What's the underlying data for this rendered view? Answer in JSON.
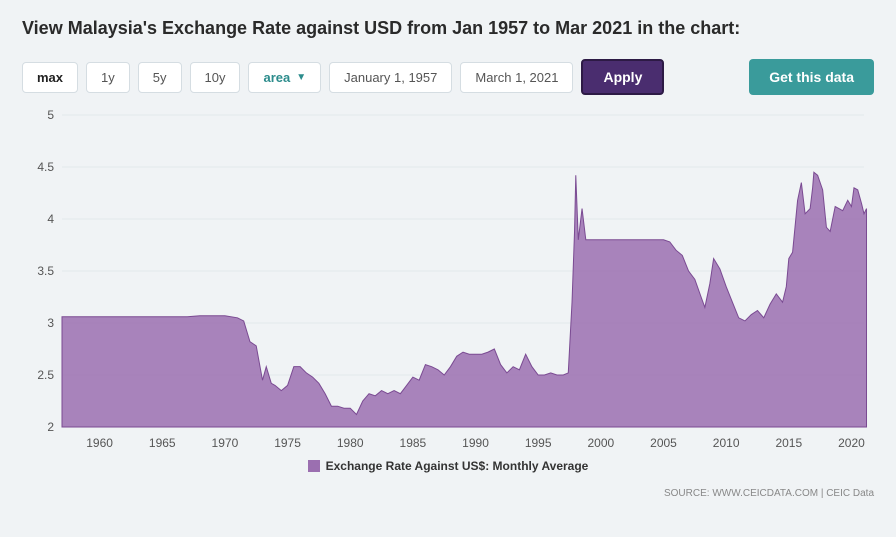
{
  "title": "View Malaysia's Exchange Rate against USD from Jan 1957 to Mar 2021 in the chart:",
  "controls": {
    "range_buttons": [
      "max",
      "1y",
      "5y",
      "10y"
    ],
    "active_range": "max",
    "chart_type": "area",
    "date_from": "January 1, 1957",
    "date_to": "March 1, 2021",
    "apply_label": "Apply",
    "get_data_label": "Get this data"
  },
  "chart": {
    "type": "area",
    "series_name": "Exchange Rate Against US$: Monthly Average",
    "fill_color": "#9b6fb0",
    "stroke_color": "#7a4a92",
    "background_color": "#f0f3f5",
    "grid_color": "#e2e8ec",
    "axis_text_color": "#555555",
    "x_range": [
      1957,
      2021
    ],
    "x_ticks": [
      1960,
      1965,
      1970,
      1975,
      1980,
      1985,
      1990,
      1995,
      2000,
      2005,
      2010,
      2015,
      2020
    ],
    "y_range": [
      2,
      5
    ],
    "y_ticks": [
      2,
      2.5,
      3,
      3.5,
      4,
      4.5,
      5
    ],
    "label_fontsize": 12,
    "legend_fontsize": 12,
    "data": [
      [
        1957,
        3.06
      ],
      [
        1958,
        3.06
      ],
      [
        1959,
        3.06
      ],
      [
        1960,
        3.06
      ],
      [
        1961,
        3.06
      ],
      [
        1962,
        3.06
      ],
      [
        1963,
        3.06
      ],
      [
        1964,
        3.06
      ],
      [
        1965,
        3.06
      ],
      [
        1966,
        3.06
      ],
      [
        1967,
        3.06
      ],
      [
        1968,
        3.07
      ],
      [
        1969,
        3.07
      ],
      [
        1970,
        3.07
      ],
      [
        1971,
        3.05
      ],
      [
        1971.5,
        3.02
      ],
      [
        1972,
        2.82
      ],
      [
        1972.5,
        2.78
      ],
      [
        1973,
        2.45
      ],
      [
        1973.3,
        2.58
      ],
      [
        1973.7,
        2.42
      ],
      [
        1974,
        2.4
      ],
      [
        1974.5,
        2.35
      ],
      [
        1975,
        2.4
      ],
      [
        1975.5,
        2.58
      ],
      [
        1976,
        2.58
      ],
      [
        1976.5,
        2.52
      ],
      [
        1977,
        2.48
      ],
      [
        1977.5,
        2.42
      ],
      [
        1978,
        2.32
      ],
      [
        1978.5,
        2.2
      ],
      [
        1979,
        2.2
      ],
      [
        1979.5,
        2.18
      ],
      [
        1980,
        2.18
      ],
      [
        1980.5,
        2.12
      ],
      [
        1981,
        2.25
      ],
      [
        1981.5,
        2.32
      ],
      [
        1982,
        2.3
      ],
      [
        1982.5,
        2.35
      ],
      [
        1983,
        2.32
      ],
      [
        1983.5,
        2.35
      ],
      [
        1984,
        2.32
      ],
      [
        1984.5,
        2.4
      ],
      [
        1985,
        2.48
      ],
      [
        1985.5,
        2.45
      ],
      [
        1986,
        2.6
      ],
      [
        1986.5,
        2.58
      ],
      [
        1987,
        2.55
      ],
      [
        1987.5,
        2.5
      ],
      [
        1988,
        2.58
      ],
      [
        1988.5,
        2.68
      ],
      [
        1989,
        2.72
      ],
      [
        1989.5,
        2.7
      ],
      [
        1990,
        2.7
      ],
      [
        1990.5,
        2.7
      ],
      [
        1991,
        2.72
      ],
      [
        1991.5,
        2.75
      ],
      [
        1992,
        2.6
      ],
      [
        1992.5,
        2.52
      ],
      [
        1993,
        2.58
      ],
      [
        1993.5,
        2.55
      ],
      [
        1994,
        2.7
      ],
      [
        1994.5,
        2.58
      ],
      [
        1995,
        2.5
      ],
      [
        1995.5,
        2.5
      ],
      [
        1996,
        2.52
      ],
      [
        1996.5,
        2.5
      ],
      [
        1997,
        2.5
      ],
      [
        1997.4,
        2.52
      ],
      [
        1997.7,
        3.2
      ],
      [
        1997.9,
        3.88
      ],
      [
        1998,
        4.42
      ],
      [
        1998.2,
        3.8
      ],
      [
        1998.5,
        4.1
      ],
      [
        1998.8,
        3.8
      ],
      [
        1999,
        3.8
      ],
      [
        2000,
        3.8
      ],
      [
        2001,
        3.8
      ],
      [
        2002,
        3.8
      ],
      [
        2003,
        3.8
      ],
      [
        2004,
        3.8
      ],
      [
        2005,
        3.8
      ],
      [
        2005.5,
        3.78
      ],
      [
        2006,
        3.7
      ],
      [
        2006.5,
        3.65
      ],
      [
        2007,
        3.5
      ],
      [
        2007.5,
        3.42
      ],
      [
        2008,
        3.25
      ],
      [
        2008.3,
        3.15
      ],
      [
        2008.7,
        3.38
      ],
      [
        2009,
        3.62
      ],
      [
        2009.5,
        3.52
      ],
      [
        2010,
        3.35
      ],
      [
        2010.5,
        3.2
      ],
      [
        2011,
        3.05
      ],
      [
        2011.5,
        3.02
      ],
      [
        2012,
        3.08
      ],
      [
        2012.5,
        3.12
      ],
      [
        2013,
        3.05
      ],
      [
        2013.5,
        3.18
      ],
      [
        2014,
        3.28
      ],
      [
        2014.5,
        3.2
      ],
      [
        2014.8,
        3.35
      ],
      [
        2015,
        3.62
      ],
      [
        2015.3,
        3.68
      ],
      [
        2015.7,
        4.18
      ],
      [
        2016,
        4.35
      ],
      [
        2016.3,
        4.05
      ],
      [
        2016.7,
        4.1
      ],
      [
        2016.9,
        4.3
      ],
      [
        2017,
        4.45
      ],
      [
        2017.3,
        4.42
      ],
      [
        2017.7,
        4.28
      ],
      [
        2018,
        3.92
      ],
      [
        2018.3,
        3.88
      ],
      [
        2018.7,
        4.12
      ],
      [
        2019,
        4.1
      ],
      [
        2019.3,
        4.08
      ],
      [
        2019.7,
        4.18
      ],
      [
        2020,
        4.12
      ],
      [
        2020.2,
        4.3
      ],
      [
        2020.5,
        4.28
      ],
      [
        2020.8,
        4.15
      ],
      [
        2021,
        4.05
      ],
      [
        2021.2,
        4.1
      ]
    ]
  },
  "source_text": "SOURCE: WWW.CEICDATA.COM | CEIC Data"
}
